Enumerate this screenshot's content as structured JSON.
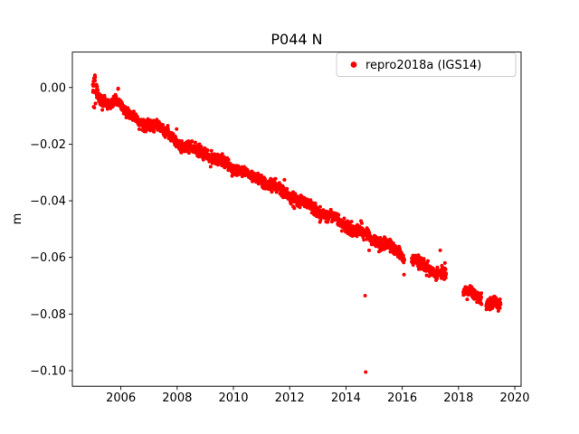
{
  "chart_data": {
    "type": "scatter",
    "title": "P044 N",
    "xlabel": "",
    "ylabel": "m",
    "xlim": [
      2004.275,
      2020.225
    ],
    "ylim": [
      -0.1055,
      0.0125
    ],
    "grid": false,
    "xticks": {
      "values": [
        2006,
        2008,
        2010,
        2012,
        2014,
        2016,
        2018,
        2020
      ],
      "labels": [
        "2006",
        "2008",
        "2010",
        "2012",
        "2014",
        "2016",
        "2018",
        "2020"
      ]
    },
    "yticks": {
      "values": [
        0.0,
        -0.02,
        -0.04,
        -0.06,
        -0.08,
        -0.1
      ],
      "labels": [
        "0.00",
        "−0.02",
        "−0.04",
        "−0.06",
        "−0.08",
        "−0.10"
      ]
    },
    "legend": {
      "location": "upper right",
      "entries": [
        {
          "label": "repro2018a (IGS14)",
          "marker": "dot",
          "color": "#ff0000"
        }
      ]
    },
    "series": [
      {
        "name": "repro2018a (IGS14)",
        "color": "#ff0000",
        "marker": "dot",
        "marker_radius_px": 2,
        "points_per_year": 160,
        "noise_sd_m": 0.001,
        "seasonal_amp_m": 0.0008,
        "trend_anchors": [
          [
            2005.0,
            -0.0005
          ],
          [
            2005.08,
            0.001
          ],
          [
            2005.3,
            -0.005
          ],
          [
            2005.6,
            -0.0065
          ],
          [
            2005.9,
            -0.004
          ],
          [
            2006.1,
            -0.0075
          ],
          [
            2006.4,
            -0.0105
          ],
          [
            2006.7,
            -0.0135
          ],
          [
            2007.0,
            -0.0125
          ],
          [
            2007.3,
            -0.0135
          ],
          [
            2007.6,
            -0.0165
          ],
          [
            2007.9,
            -0.018
          ],
          [
            2008.2,
            -0.0205
          ],
          [
            2008.5,
            -0.022
          ],
          [
            2008.8,
            -0.0225
          ],
          [
            2009.1,
            -0.023
          ],
          [
            2009.4,
            -0.0255
          ],
          [
            2009.7,
            -0.027
          ],
          [
            2010.0,
            -0.028
          ],
          [
            2010.3,
            -0.0295
          ],
          [
            2010.6,
            -0.0315
          ],
          [
            2010.9,
            -0.032
          ],
          [
            2011.2,
            -0.034
          ],
          [
            2011.5,
            -0.0355
          ],
          [
            2011.8,
            -0.037
          ],
          [
            2012.1,
            -0.0385
          ],
          [
            2012.4,
            -0.0405
          ],
          [
            2012.7,
            -0.042
          ],
          [
            2013.0,
            -0.0435
          ],
          [
            2013.3,
            -0.045
          ],
          [
            2013.6,
            -0.0465
          ],
          [
            2013.9,
            -0.048
          ],
          [
            2014.2,
            -0.0495
          ],
          [
            2014.5,
            -0.051
          ],
          [
            2014.8,
            -0.0525
          ],
          [
            2015.1,
            -0.054
          ],
          [
            2015.4,
            -0.0555
          ],
          [
            2015.7,
            -0.0575
          ],
          [
            2016.0,
            -0.059
          ],
          [
            2016.35,
            -0.061
          ],
          [
            2016.7,
            -0.0625
          ],
          [
            2017.0,
            -0.064
          ],
          [
            2017.3,
            -0.0655
          ],
          [
            2017.56,
            -0.066
          ],
          [
            2018.17,
            -0.0715
          ],
          [
            2018.5,
            -0.0735
          ],
          [
            2018.8,
            -0.075
          ],
          [
            2019.0,
            -0.0755
          ],
          [
            2019.25,
            -0.076
          ],
          [
            2019.5,
            -0.077
          ]
        ],
        "segments": [
          [
            2005.0,
            2017.56
          ],
          [
            2018.17,
            2019.5
          ]
        ],
        "gaps": [
          [
            2016.08,
            2016.33
          ],
          [
            2018.82,
            2018.98
          ]
        ],
        "start_burst": {
          "range": [
            2005.0,
            2005.15
          ],
          "sd": 0.003
        },
        "outliers": [
          [
            2014.68,
            -0.0735
          ],
          [
            2014.7,
            -0.1005
          ],
          [
            2017.35,
            -0.0575
          ]
        ]
      }
    ]
  }
}
